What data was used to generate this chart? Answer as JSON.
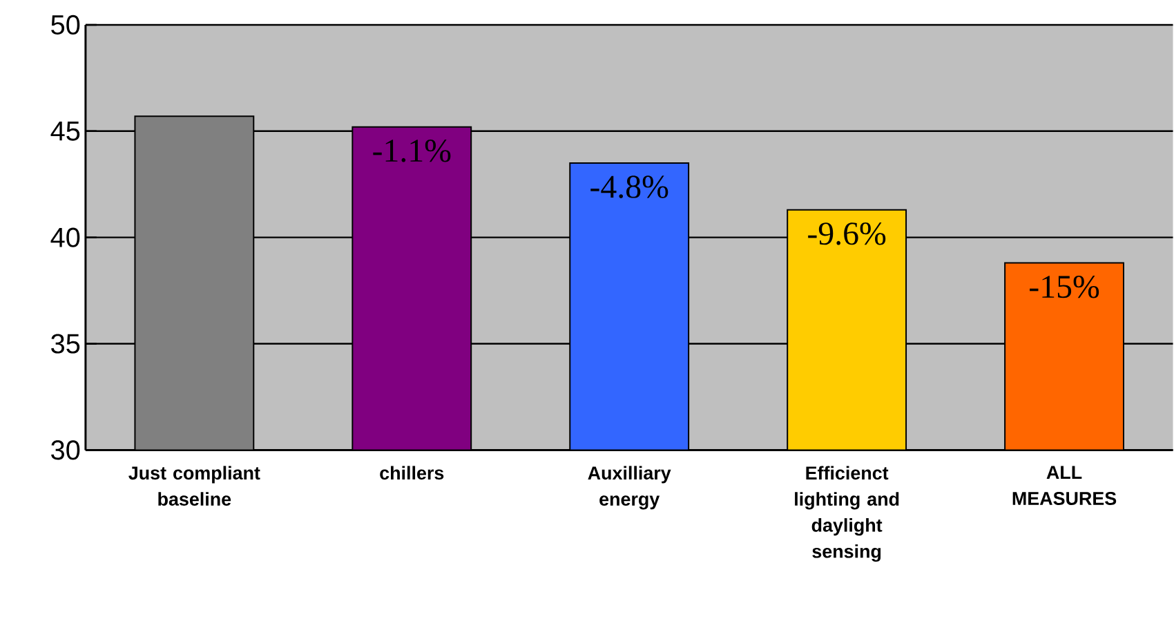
{
  "chart_data": {
    "type": "bar",
    "categories": [
      "Just compliant baseline",
      "chillers",
      "Auxilliary energy",
      "Efficienct lighting and daylight sensing",
      "ALL MEASURES"
    ],
    "values": [
      45.7,
      45.2,
      43.5,
      41.3,
      38.8
    ],
    "colors": [
      "#808080",
      "#800080",
      "#3366ff",
      "#ffcc00",
      "#ff6600"
    ],
    "annotations": [
      {
        "text": "-1.1%",
        "x": "chillers",
        "y": 45.2
      },
      {
        "text": "-4.8%",
        "x": "Auxilliary energy",
        "y": 43.5
      },
      {
        "text": "-9.6%",
        "x": "Efficienct lighting and daylight sensing",
        "y": 41.3
      },
      {
        "text": "-15%",
        "x": "ALL MEASURES",
        "y": 38.8
      }
    ],
    "ylim": [
      30,
      50
    ],
    "yticks": [
      30,
      35,
      40,
      45,
      50
    ],
    "grid": "y"
  }
}
